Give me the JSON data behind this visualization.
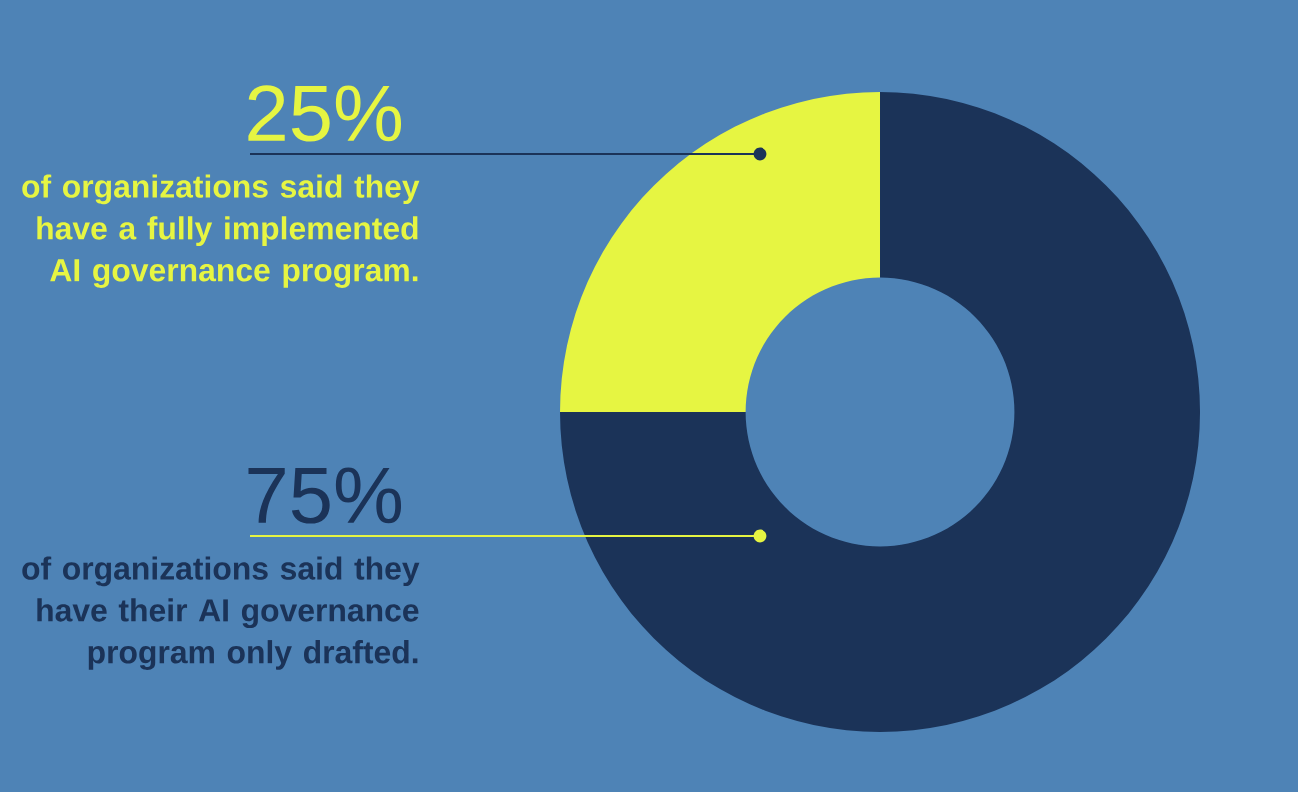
{
  "chart_data": {
    "type": "donut",
    "categories": [
      "of organizations said they have a fully implemented AI governance program.",
      "of organizations said they have their AI governance program only drafted."
    ],
    "values": [
      25,
      75
    ],
    "colors": [
      "#e6f542",
      "#1b3358"
    ],
    "value_labels": [
      "25%",
      "75%"
    ]
  }
}
